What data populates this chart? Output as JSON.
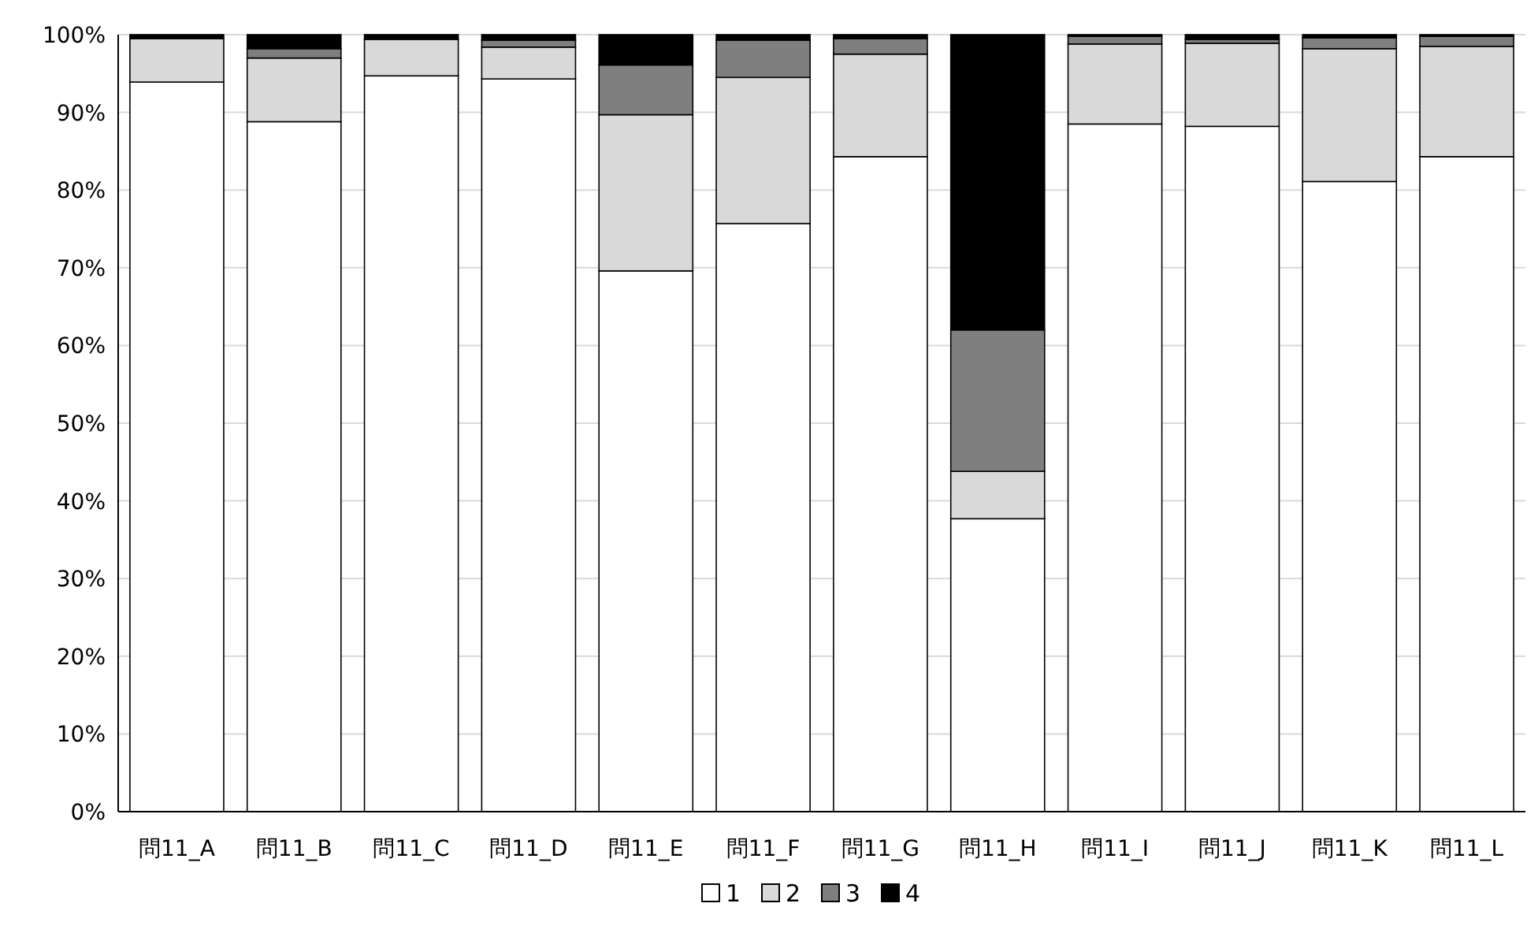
{
  "chart_data": {
    "type": "bar",
    "stacked": true,
    "categories": [
      "問11_A",
      "問11_B",
      "問11_C",
      "問11_D",
      "問11_E",
      "問11_F",
      "問11_G",
      "問11_H",
      "問11_I",
      "問11_J",
      "問11_K",
      "問11_L"
    ],
    "series": [
      {
        "name": "1",
        "color": "#ffffff",
        "values": [
          93.9,
          88.8,
          94.7,
          94.3,
          69.6,
          75.7,
          84.3,
          37.7,
          88.5,
          88.2,
          81.1,
          84.3
        ]
      },
      {
        "name": "2",
        "color": "#d9d9d9",
        "values": [
          5.6,
          8.2,
          4.7,
          4.1,
          20.1,
          18.8,
          13.2,
          6.1,
          10.3,
          10.7,
          17.1,
          14.2
        ]
      },
      {
        "name": "3",
        "color": "#7f7f7f",
        "values": [
          0,
          1.2,
          0,
          0.9,
          6.4,
          4.8,
          2.0,
          18.2,
          1.0,
          0.5,
          1.4,
          1.3
        ]
      },
      {
        "name": "4",
        "color": "#000000",
        "values": [
          0.5,
          1.8,
          0.6,
          0.7,
          3.9,
          0.7,
          0.5,
          38.0,
          0.2,
          0.6,
          0.4,
          0.2
        ]
      }
    ],
    "ylim": [
      0,
      100
    ],
    "yticks": [
      {
        "value": 0,
        "label": "0%"
      },
      {
        "value": 10,
        "label": "10%"
      },
      {
        "value": 20,
        "label": "20%"
      },
      {
        "value": 30,
        "label": "30%"
      },
      {
        "value": 40,
        "label": "40%"
      },
      {
        "value": 50,
        "label": "50%"
      },
      {
        "value": 60,
        "label": "60%"
      },
      {
        "value": 70,
        "label": "70%"
      },
      {
        "value": 80,
        "label": "80%"
      },
      {
        "value": 90,
        "label": "90%"
      },
      {
        "value": 100,
        "label": "100%"
      }
    ],
    "grid": "y",
    "legend": "bottom"
  }
}
